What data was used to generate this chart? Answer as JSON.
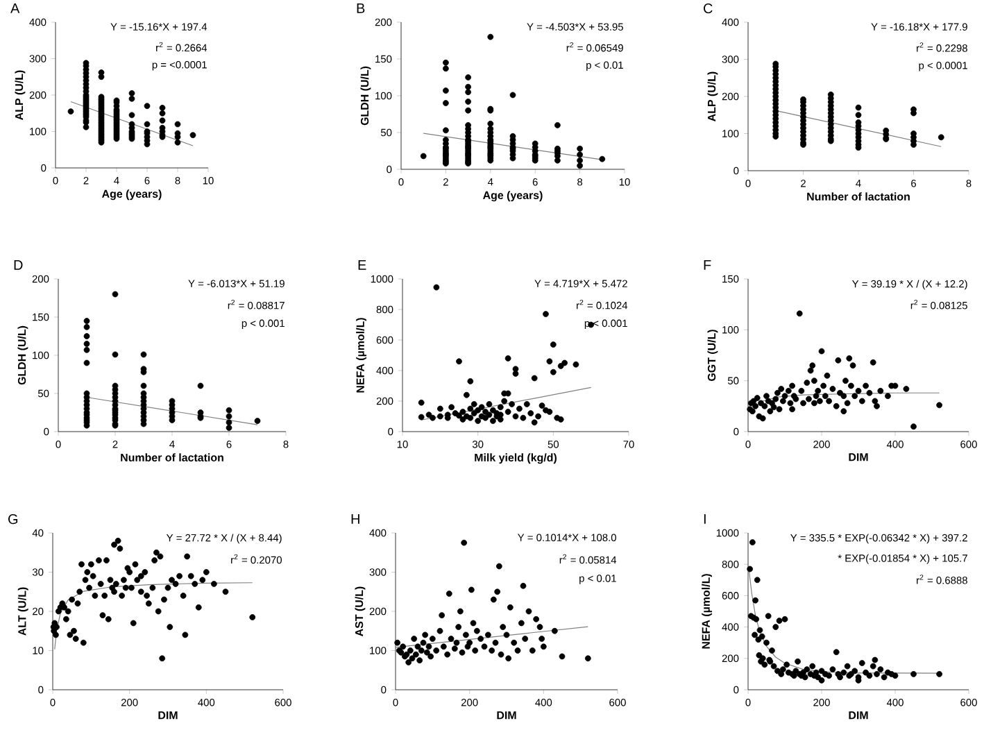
{
  "chart_data": [
    {
      "type": "scatter",
      "title": "A",
      "xlabel": "Age (years)",
      "ylabel": "ALP (U/L)",
      "xlim": [
        0,
        10
      ],
      "ylim": [
        0,
        400
      ],
      "xticks": [
        0,
        2,
        4,
        6,
        8,
        10
      ],
      "yticks": [
        0,
        100,
        200,
        300,
        400
      ],
      "annotations": [
        "Y = -15.16*X + 197.4",
        "r$^{2}$ = 0.2664",
        "p = <0.0001"
      ],
      "series": [
        {
          "type": "scatter",
          "color": "#000000",
          "x": [
            1,
            2,
            2,
            2,
            2,
            2,
            2,
            2,
            2,
            2,
            2,
            2,
            2,
            2,
            2,
            2,
            2,
            2,
            2,
            2,
            2,
            2,
            2,
            2,
            2,
            2,
            3,
            3,
            3,
            3,
            3,
            3,
            3,
            3,
            3,
            3,
            3,
            3,
            3,
            3,
            3,
            3,
            3,
            3,
            3,
            3,
            3,
            3,
            3,
            3,
            3,
            3,
            3,
            3,
            4,
            4,
            4,
            4,
            4,
            4,
            4,
            4,
            4,
            4,
            4,
            4,
            4,
            4,
            4,
            4,
            4,
            4,
            4,
            4,
            5,
            5,
            5,
            5,
            5,
            5,
            5,
            5,
            5,
            5,
            6,
            6,
            6,
            6,
            6,
            6,
            6,
            7,
            7,
            7,
            7,
            7,
            7,
            7,
            8,
            8,
            8,
            8,
            9
          ],
          "values": [
            155,
            288,
            280,
            270,
            260,
            250,
            240,
            230,
            220,
            210,
            200,
            195,
            190,
            185,
            180,
            175,
            170,
            165,
            160,
            155,
            150,
            145,
            140,
            130,
            125,
            112,
            262,
            250,
            195,
            190,
            185,
            180,
            175,
            170,
            165,
            160,
            155,
            150,
            145,
            140,
            135,
            130,
            125,
            120,
            115,
            110,
            105,
            100,
            95,
            90,
            85,
            80,
            75,
            70,
            185,
            180,
            170,
            160,
            155,
            150,
            145,
            140,
            135,
            130,
            125,
            120,
            115,
            110,
            105,
            100,
            95,
            90,
            85,
            80,
            205,
            190,
            145,
            120,
            110,
            100,
            95,
            90,
            85,
            80,
            170,
            120,
            100,
            95,
            85,
            75,
            65,
            165,
            150,
            130,
            110,
            100,
            90,
            85,
            120,
            95,
            85,
            70,
            90
          ]
        },
        {
          "type": "line",
          "color": "#7f7f7f",
          "marker": "none",
          "x": [
            1,
            9
          ],
          "values": [
            182,
            61
          ]
        }
      ]
    },
    {
      "type": "scatter",
      "title": "B",
      "xlabel": "Age (years)",
      "ylabel": "GLDH (U/L)",
      "xlim": [
        0,
        10
      ],
      "ylim": [
        0,
        200
      ],
      "xticks": [
        0,
        2,
        4,
        6,
        8,
        10
      ],
      "yticks": [
        0,
        50,
        100,
        150,
        200
      ],
      "annotations": [
        "Y = -4.503*X + 53.95",
        "r$^{2}$ = 0.06549",
        "p < 0.01"
      ],
      "series": [
        {
          "type": "scatter",
          "color": "#000000",
          "x": [
            1,
            2,
            2,
            2,
            2,
            2,
            2,
            2,
            2,
            2,
            2,
            2,
            2,
            2,
            2,
            2,
            2,
            2,
            3,
            3,
            3,
            3,
            3,
            3,
            3,
            3,
            3,
            3,
            3,
            3,
            3,
            3,
            3,
            3,
            3,
            3,
            3,
            3,
            3,
            3,
            3,
            4,
            4,
            4,
            4,
            4,
            4,
            4,
            4,
            4,
            4,
            4,
            4,
            4,
            4,
            4,
            4,
            4,
            4,
            4,
            5,
            5,
            5,
            5,
            5,
            5,
            5,
            5,
            5,
            6,
            6,
            6,
            6,
            6,
            6,
            6,
            7,
            7,
            7,
            7,
            7,
            7,
            8,
            8,
            8,
            8,
            9
          ],
          "values": [
            18,
            145,
            137,
            107,
            90,
            53,
            40,
            35,
            30,
            28,
            25,
            22,
            20,
            18,
            15,
            12,
            10,
            8,
            125,
            112,
            105,
            92,
            80,
            60,
            55,
            50,
            45,
            40,
            38,
            35,
            32,
            30,
            28,
            25,
            22,
            20,
            18,
            15,
            12,
            10,
            8,
            180,
            82,
            80,
            62,
            55,
            50,
            45,
            40,
            38,
            35,
            32,
            30,
            28,
            25,
            22,
            20,
            18,
            15,
            12,
            101,
            45,
            40,
            35,
            30,
            28,
            25,
            20,
            15,
            35,
            30,
            25,
            20,
            18,
            15,
            12,
            60,
            28,
            25,
            22,
            18,
            12,
            28,
            20,
            12,
            5,
            14
          ]
        },
        {
          "type": "line",
          "color": "#7f7f7f",
          "marker": "none",
          "x": [
            1,
            9
          ],
          "values": [
            49,
            13
          ]
        }
      ]
    },
    {
      "type": "scatter",
      "title": "C",
      "xlabel": "Number of lactation",
      "ylabel": "ALP (U/L)",
      "xlim": [
        0,
        8
      ],
      "ylim": [
        0,
        400
      ],
      "xticks": [
        0,
        2,
        4,
        6,
        8
      ],
      "yticks": [
        0,
        100,
        200,
        300,
        400
      ],
      "annotations": [
        "Y = -16.18*X + 177.9",
        "r$^{2}$ = 0.2298",
        "p < 0.0001"
      ],
      "series": [
        {
          "type": "scatter",
          "color": "#000000",
          "x": [
            1,
            1,
            1,
            1,
            1,
            1,
            1,
            1,
            1,
            1,
            1,
            1,
            1,
            1,
            1,
            1,
            1,
            1,
            1,
            1,
            1,
            2,
            2,
            2,
            2,
            2,
            2,
            2,
            2,
            2,
            2,
            2,
            2,
            2,
            2,
            3,
            3,
            3,
            3,
            3,
            3,
            3,
            3,
            3,
            3,
            3,
            3,
            3,
            3,
            4,
            4,
            4,
            4,
            4,
            4,
            4,
            4,
            4,
            4,
            5,
            5,
            5,
            5,
            6,
            6,
            6,
            6,
            6,
            6,
            7
          ],
          "values": [
            288,
            280,
            270,
            260,
            250,
            240,
            230,
            220,
            210,
            200,
            190,
            180,
            170,
            160,
            150,
            140,
            130,
            120,
            110,
            100,
            92,
            192,
            185,
            175,
            165,
            155,
            145,
            135,
            125,
            115,
            105,
            95,
            85,
            75,
            70,
            205,
            195,
            185,
            175,
            165,
            155,
            145,
            135,
            125,
            115,
            105,
            95,
            85,
            80,
            170,
            150,
            130,
            120,
            110,
            100,
            90,
            80,
            70,
            62,
            108,
            98,
            88,
            85,
            165,
            155,
            100,
            90,
            80,
            70,
            90
          ]
        },
        {
          "type": "line",
          "color": "#7f7f7f",
          "marker": "none",
          "x": [
            1,
            7
          ],
          "values": [
            162,
            65
          ]
        }
      ]
    },
    {
      "type": "scatter",
      "title": "D",
      "xlabel": "Number of lactation",
      "ylabel": "GLDH (U/L)",
      "xlim": [
        0,
        8
      ],
      "ylim": [
        0,
        200
      ],
      "xticks": [
        0,
        2,
        4,
        6,
        8
      ],
      "yticks": [
        0,
        50,
        100,
        150,
        200
      ],
      "annotations": [
        "Y = -6.013*X + 51.19",
        "r$^{2}$ = 0.08817",
        "p < 0.001"
      ],
      "series": [
        {
          "type": "scatter",
          "color": "#000000",
          "x": [
            1,
            1,
            1,
            1,
            1,
            1,
            1,
            1,
            1,
            1,
            1,
            1,
            1,
            1,
            1,
            1,
            1,
            2,
            2,
            2,
            2,
            2,
            2,
            2,
            2,
            2,
            2,
            2,
            2,
            2,
            2,
            2,
            2,
            3,
            3,
            3,
            3,
            3,
            3,
            3,
            3,
            3,
            3,
            3,
            3,
            3,
            4,
            4,
            4,
            4,
            4,
            4,
            5,
            5,
            5,
            5,
            6,
            6,
            6,
            6,
            7
          ],
          "values": [
            145,
            137,
            125,
            115,
            107,
            90,
            50,
            45,
            40,
            35,
            30,
            25,
            22,
            18,
            15,
            12,
            8,
            180,
            101,
            60,
            55,
            50,
            45,
            40,
            35,
            30,
            28,
            25,
            22,
            18,
            15,
            10,
            8,
            101,
            82,
            78,
            60,
            50,
            45,
            40,
            35,
            30,
            25,
            20,
            15,
            10,
            40,
            35,
            30,
            25,
            20,
            15,
            60,
            25,
            20,
            18,
            28,
            20,
            12,
            5,
            14
          ]
        },
        {
          "type": "line",
          "color": "#7f7f7f",
          "marker": "none",
          "x": [
            1,
            7
          ],
          "values": [
            45,
            9
          ]
        }
      ]
    },
    {
      "type": "scatter",
      "title": "E",
      "xlabel": "Milk yield (kg/d)",
      "ylabel": "NEFA (µmol/L)",
      "xlim": [
        10,
        70
      ],
      "ylim": [
        0,
        1000
      ],
      "xticks": [
        10,
        30,
        50,
        70
      ],
      "yticks": [
        0,
        200,
        400,
        600,
        800,
        1000
      ],
      "annotations": [
        "Y = 4.719*X + 5.472",
        "r$^{2}$ = 0.1024",
        "p < 0.001"
      ],
      "series": [
        {
          "type": "scatter",
          "color": "#000000",
          "x": [
            15,
            15,
            17,
            18,
            19,
            20,
            20,
            22,
            22,
            23,
            24,
            25,
            25,
            26,
            26,
            27,
            27,
            28,
            28,
            28,
            29,
            29,
            30,
            30,
            31,
            31,
            32,
            32,
            33,
            33,
            34,
            34,
            35,
            35,
            36,
            36,
            37,
            37,
            38,
            38,
            38,
            39,
            40,
            40,
            41,
            42,
            43,
            44,
            45,
            45,
            46,
            47,
            48,
            48,
            49,
            49,
            50,
            50,
            51,
            52,
            52,
            53,
            56,
            60,
            40,
            36
          ],
          "values": [
            190,
            95,
            110,
            90,
            945,
            150,
            100,
            110,
            90,
            160,
            120,
            460,
            105,
            130,
            80,
            240,
            100,
            330,
            150,
            90,
            180,
            120,
            70,
            140,
            100,
            160,
            130,
            90,
            180,
            110,
            70,
            140,
            120,
            100,
            160,
            80,
            250,
            200,
            480,
            130,
            250,
            180,
            380,
            100,
            150,
            90,
            180,
            120,
            350,
            60,
            100,
            170,
            770,
            140,
            460,
            130,
            570,
            390,
            90,
            430,
            80,
            450,
            440,
            700,
            410,
            110
          ]
        },
        {
          "type": "line",
          "color": "#7f7f7f",
          "marker": "none",
          "x": [
            15,
            60
          ],
          "values": [
            76,
            289
          ]
        }
      ]
    },
    {
      "type": "scatter",
      "title": "F",
      "xlabel": "DIM",
      "ylabel": "GGT (U/L)",
      "xlim": [
        0,
        600
      ],
      "ylim": [
        0,
        150
      ],
      "xticks": [
        0,
        200,
        400,
        600
      ],
      "yticks": [
        0,
        50,
        100,
        150
      ],
      "annotations": [
        "Y = 39.19 * X / (X + 12.2)",
        "r$^{2}$ = 0.08125"
      ],
      "series": [
        {
          "type": "scatter",
          "color": "#000000",
          "x": [
            5,
            8,
            12,
            15,
            20,
            25,
            30,
            35,
            40,
            45,
            50,
            55,
            60,
            65,
            70,
            75,
            80,
            85,
            90,
            95,
            100,
            110,
            115,
            120,
            125,
            130,
            140,
            145,
            150,
            160,
            165,
            170,
            175,
            180,
            185,
            190,
            195,
            200,
            205,
            210,
            215,
            220,
            230,
            240,
            245,
            250,
            260,
            265,
            270,
            275,
            280,
            285,
            290,
            300,
            310,
            320,
            330,
            340,
            345,
            350,
            360,
            380,
            390,
            400,
            430,
            450,
            520,
            260,
            180,
            120
          ],
          "values": [
            22,
            28,
            20,
            30,
            25,
            33,
            15,
            28,
            13,
            25,
            35,
            30,
            20,
            28,
            24,
            32,
            38,
            22,
            42,
            30,
            35,
            40,
            28,
            45,
            35,
            32,
            116,
            40,
            28,
            48,
            32,
            60,
            65,
            50,
            35,
            40,
            30,
            79,
            45,
            35,
            55,
            30,
            42,
            25,
            70,
            38,
            35,
            50,
            28,
            72,
            45,
            65,
            35,
            40,
            30,
            45,
            38,
            68,
            30,
            25,
            40,
            35,
            45,
            45,
            42,
            5,
            26,
            20,
            28,
            22
          ]
        },
        {
          "type": "line",
          "color": "#7f7f7f",
          "marker": "none",
          "x": [
            10,
            20,
            40,
            80,
            150,
            250,
            400,
            520
          ],
          "values": [
            18,
            24,
            30,
            34,
            36,
            37,
            38,
            38
          ]
        }
      ]
    },
    {
      "type": "scatter",
      "title": "G",
      "xlabel": "DIM",
      "ylabel": "ALT (U/L)",
      "xlim": [
        0,
        600
      ],
      "ylim": [
        0,
        40
      ],
      "xticks": [
        0,
        200,
        400,
        600
      ],
      "yticks": [
        0,
        10,
        20,
        30,
        40
      ],
      "annotations": [
        "Y = 27.72 * X / (X + 8.44)",
        "r$^{2}$ = 0.2070"
      ],
      "series": [
        {
          "type": "scatter",
          "color": "#000000",
          "x": [
            2,
            3,
            5,
            8,
            10,
            15,
            20,
            25,
            30,
            35,
            40,
            45,
            50,
            55,
            60,
            65,
            70,
            75,
            80,
            85,
            90,
            95,
            100,
            105,
            110,
            120,
            125,
            130,
            135,
            140,
            145,
            150,
            155,
            160,
            165,
            170,
            175,
            180,
            185,
            190,
            195,
            200,
            205,
            210,
            215,
            220,
            230,
            240,
            245,
            250,
            260,
            265,
            270,
            275,
            280,
            285,
            290,
            300,
            305,
            310,
            320,
            330,
            340,
            345,
            350,
            360,
            370,
            380,
            390,
            400,
            420,
            450,
            520,
            160,
            230
          ],
          "values": [
            16,
            15,
            17,
            14,
            16,
            20,
            21,
            22,
            21,
            18,
            20,
            14,
            23,
            15,
            13,
            22,
            25,
            32,
            12,
            28,
            30,
            26,
            32,
            29,
            24,
            33,
            27,
            19,
            24,
            33,
            18,
            28,
            26,
            25,
            27,
            38,
            36,
            24,
            28,
            26,
            31,
            30,
            26,
            17,
            32,
            28,
            29,
            30,
            24,
            22,
            26,
            33,
            35,
            20,
            34,
            8,
            23,
            26,
            16,
            28,
            27,
            29,
            24,
            14,
            34,
            29,
            27,
            21,
            28,
            30,
            27,
            25,
            18.5,
            37,
            25
          ]
        },
        {
          "type": "line",
          "color": "#7f7f7f",
          "marker": "none",
          "x": [
            5,
            10,
            20,
            40,
            80,
            150,
            250,
            400,
            520
          ],
          "values": [
            10.3,
            15,
            19.5,
            22.9,
            25.1,
            26.2,
            26.8,
            27.2,
            27.3
          ]
        }
      ]
    },
    {
      "type": "scatter",
      "title": "H",
      "xlabel": "DIM",
      "ylabel": "AST (U/L)",
      "xlim": [
        0,
        600
      ],
      "ylim": [
        0,
        400
      ],
      "xticks": [
        0,
        200,
        400,
        600
      ],
      "yticks": [
        0,
        100,
        200,
        300,
        400
      ],
      "annotations": [
        "Y = 0.1014*X + 108.0",
        "r$^{2}$ = 0.05814",
        "p < 0.01"
      ],
      "series": [
        {
          "type": "scatter",
          "color": "#000000",
          "x": [
            5,
            10,
            15,
            20,
            25,
            30,
            35,
            40,
            45,
            50,
            55,
            60,
            65,
            70,
            75,
            80,
            85,
            90,
            95,
            100,
            110,
            120,
            125,
            130,
            140,
            145,
            150,
            160,
            165,
            170,
            175,
            180,
            185,
            190,
            195,
            200,
            205,
            210,
            215,
            220,
            230,
            240,
            250,
            260,
            265,
            270,
            275,
            280,
            285,
            290,
            300,
            305,
            310,
            320,
            330,
            340,
            345,
            350,
            360,
            370,
            380,
            390,
            395,
            400,
            430,
            450,
            520
          ],
          "values": [
            120,
            100,
            95,
            110,
            85,
            90,
            70,
            100,
            80,
            130,
            90,
            110,
            75,
            100,
            120,
            140,
            95,
            110,
            85,
            130,
            100,
            150,
            190,
            110,
            90,
            245,
            130,
            105,
            120,
            160,
            200,
            95,
            375,
            140,
            110,
            120,
            255,
            170,
            100,
            150,
            130,
            110,
            140,
            100,
            230,
            120,
            250,
            315,
            90,
            160,
            140,
            80,
            210,
            120,
            100,
            170,
            265,
            130,
            200,
            100,
            180,
            160,
            130,
            110,
            150,
            85,
            80
          ]
        },
        {
          "type": "line",
          "color": "#7f7f7f",
          "marker": "none",
          "x": [
            0,
            520
          ],
          "values": [
            108,
            161
          ]
        }
      ]
    },
    {
      "type": "scatter",
      "title": "I",
      "xlabel": "DIM",
      "ylabel": "NEFA (µmol/L)",
      "xlim": [
        0,
        600
      ],
      "ylim": [
        0,
        1000
      ],
      "xticks": [
        0,
        200,
        400,
        600
      ],
      "yticks": [
        0,
        200,
        400,
        600,
        800,
        1000
      ],
      "annotations": [
        "Y = 335.5 * EXP(-0.06342 * X) + 397.2",
        "* EXP(-0.01854 * X) + 105.7",
        "r$^{2}$ = 0.6888"
      ],
      "series": [
        {
          "type": "scatter",
          "color": "#000000",
          "x": [
            5,
            8,
            12,
            15,
            18,
            20,
            22,
            25,
            28,
            30,
            32,
            35,
            38,
            40,
            45,
            50,
            55,
            58,
            60,
            65,
            70,
            75,
            80,
            85,
            90,
            95,
            100,
            105,
            110,
            120,
            125,
            130,
            135,
            140,
            145,
            150,
            155,
            160,
            170,
            175,
            180,
            185,
            190,
            200,
            210,
            220,
            230,
            240,
            245,
            250,
            260,
            270,
            275,
            280,
            290,
            300,
            310,
            320,
            330,
            340,
            345,
            350,
            360,
            370,
            380,
            390,
            400,
            450,
            520,
            200,
            300
          ],
          "values": [
            770,
            470,
            940,
            460,
            350,
            570,
            450,
            700,
            320,
            220,
            380,
            180,
            340,
            200,
            160,
            300,
            470,
            190,
            180,
            250,
            150,
            400,
            120,
            440,
            100,
            130,
            450,
            160,
            110,
            100,
            90,
            120,
            180,
            100,
            90,
            110,
            80,
            130,
            100,
            150,
            90,
            110,
            80,
            120,
            100,
            90,
            130,
            240,
            100,
            80,
            110,
            150,
            90,
            100,
            120,
            80,
            170,
            110,
            90,
            150,
            190,
            100,
            130,
            80,
            110,
            100,
            90,
            100,
            100,
            60,
            60
          ]
        },
        {
          "type": "line",
          "color": "#7f7f7f",
          "marker": "none",
          "x": [
            2,
            5,
            10,
            20,
            30,
            50,
            75,
            100,
            150,
            200,
            300,
            520
          ],
          "values": [
            784,
            712,
            614,
            474,
            384,
            277,
            208,
            169,
            130,
            115,
            107,
            106
          ]
        }
      ]
    }
  ]
}
